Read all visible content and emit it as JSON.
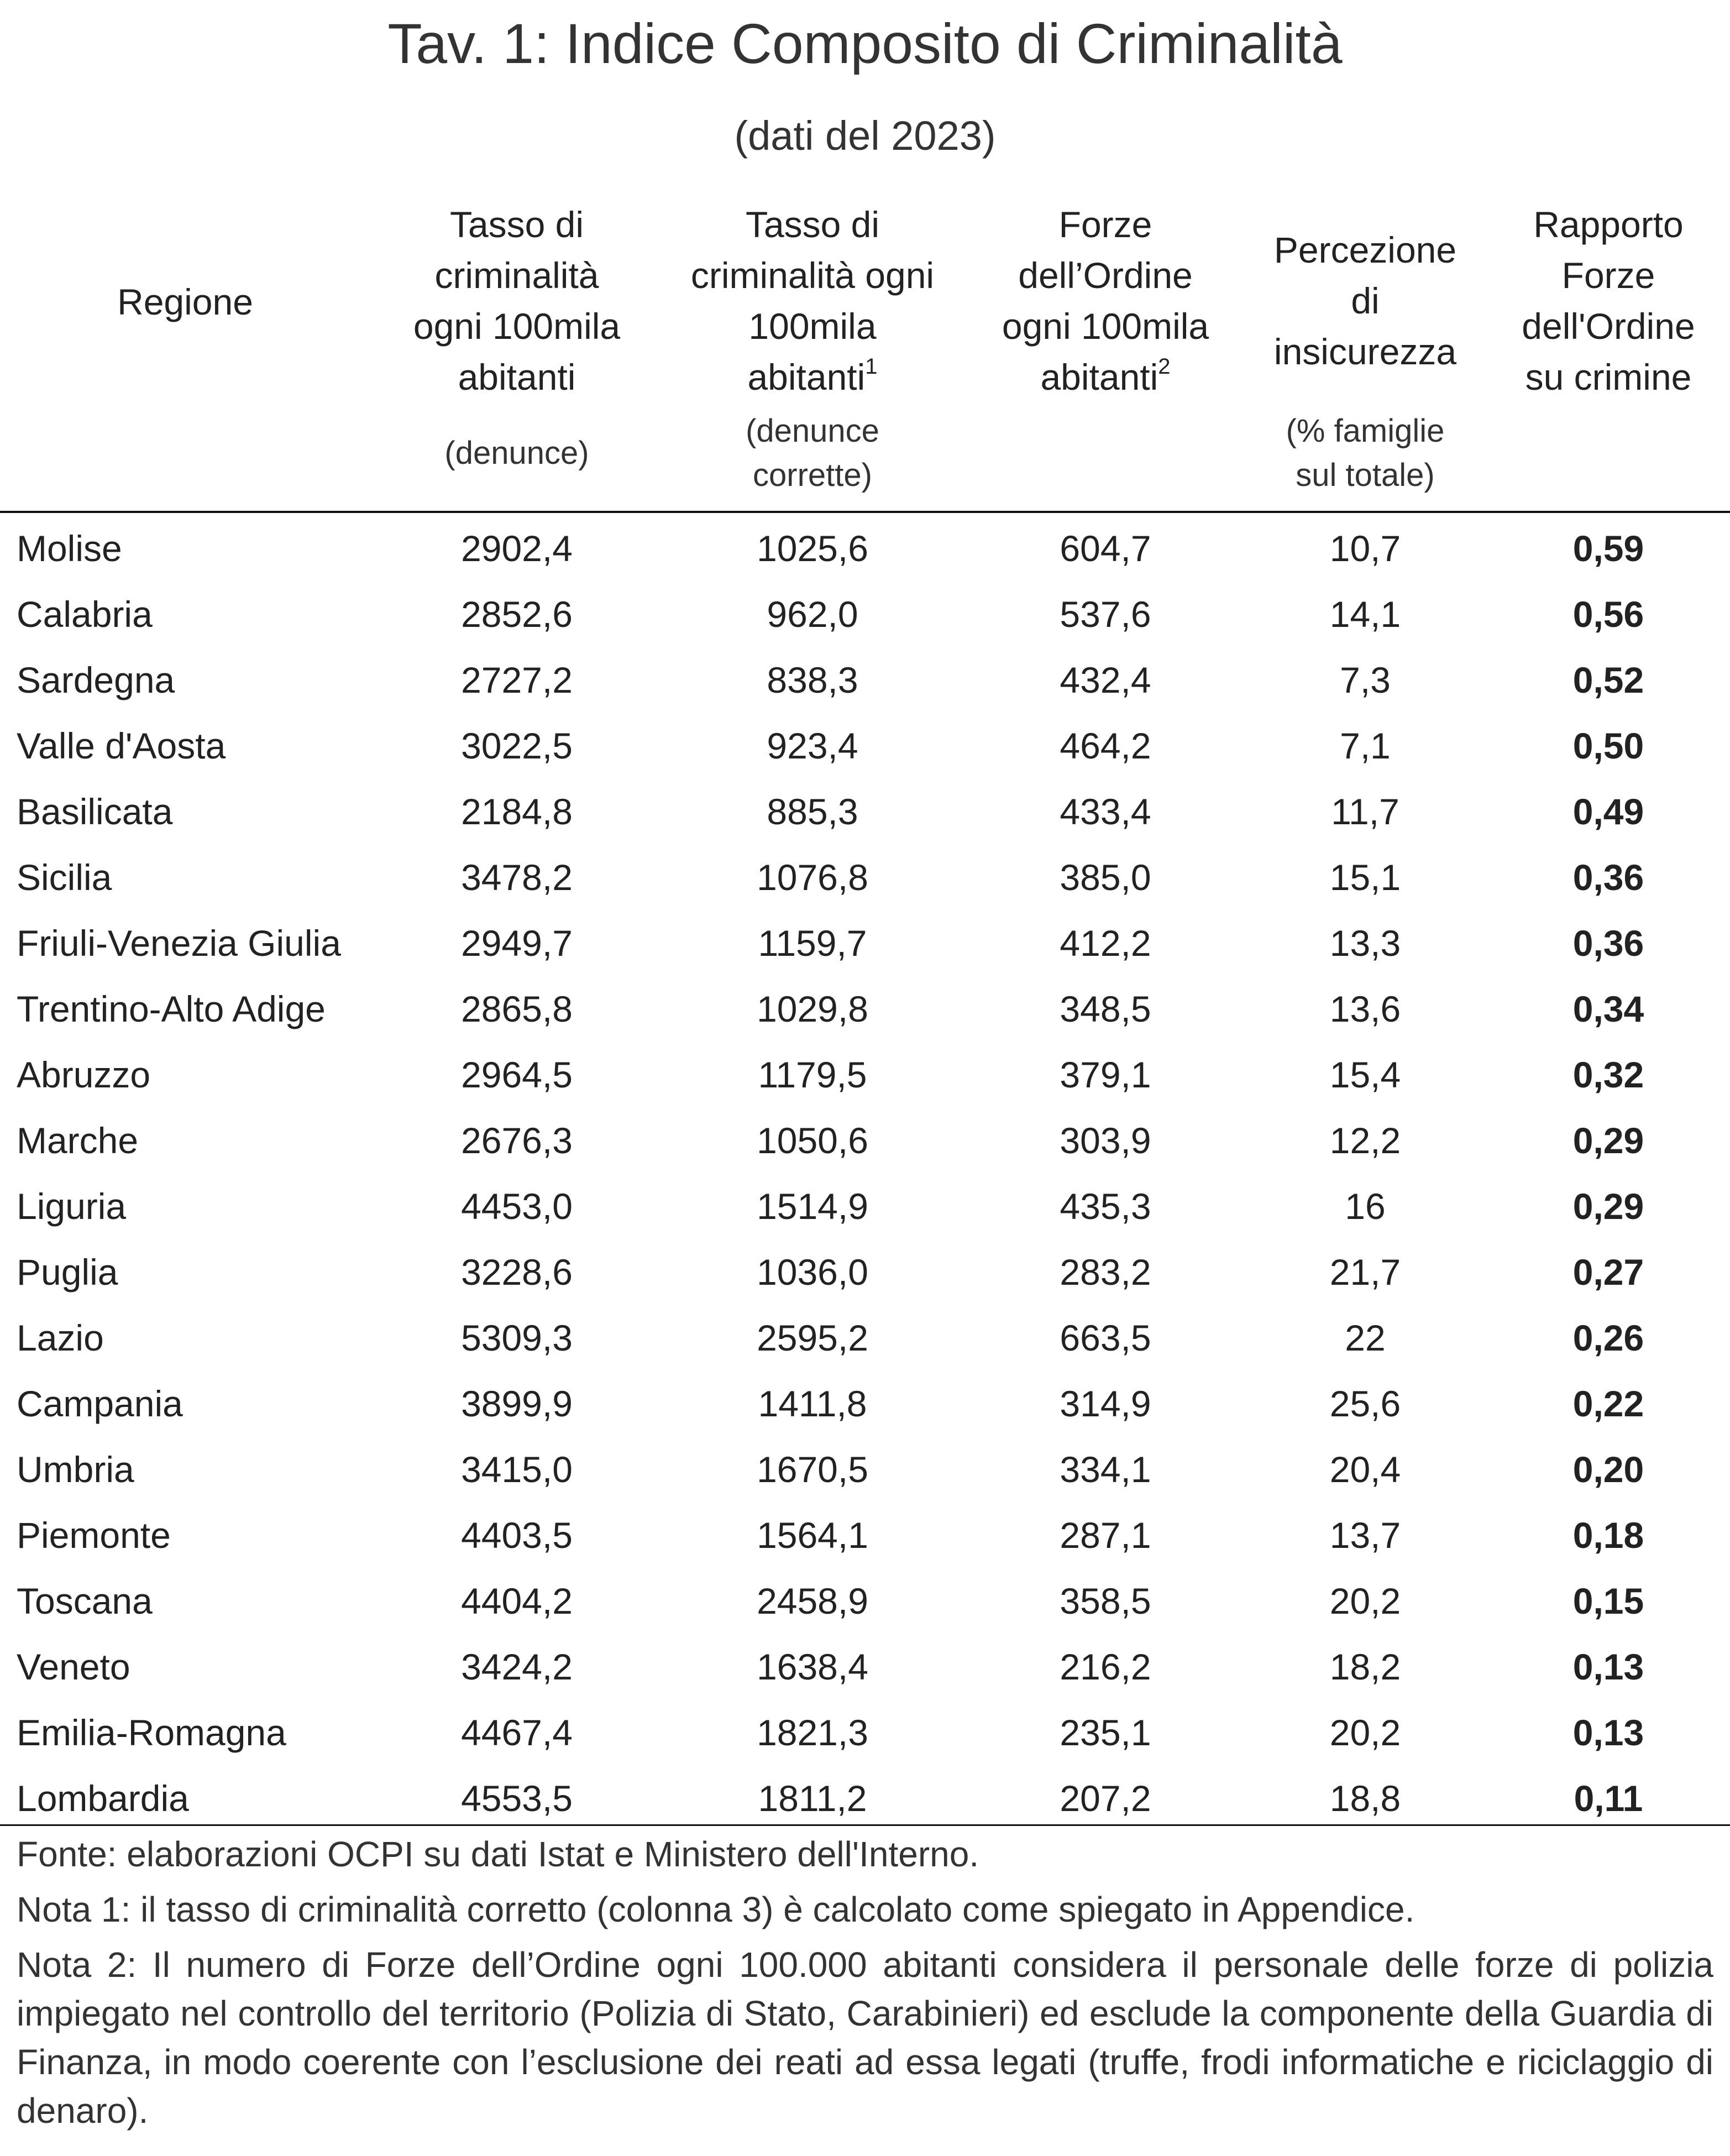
{
  "title": "Tav. 1: Indice Composito di Criminalità",
  "subtitle": "(dati del 2023)",
  "columns": [
    {
      "label": "Regione",
      "lines": [
        "Regione"
      ],
      "sub": []
    },
    {
      "label": "Tasso di criminalità ogni 100mila abitanti",
      "lines": [
        "Tasso di",
        "criminalità",
        "ogni 100mila",
        "abitanti"
      ],
      "sub": [
        "(denunce)"
      ]
    },
    {
      "label": "Tasso di criminalità ogni 100mila abitanti",
      "lines": [
        "Tasso di",
        "criminalità ogni",
        "100mila",
        "abitanti"
      ],
      "sup": "1",
      "sub": [
        "(denunce",
        "corrette)"
      ]
    },
    {
      "label": "Forze dell’Ordine ogni 100mila abitanti",
      "lines": [
        "Forze",
        "dell’Ordine",
        "ogni 100mila",
        "abitanti"
      ],
      "sup": "2",
      "sub": []
    },
    {
      "label": "Percezione di insicurezza",
      "lines": [
        "Percezione",
        "di",
        "insicurezza"
      ],
      "sub": [
        "(% famiglie",
        "sul totale)"
      ]
    },
    {
      "label": "Rapporto Forze dell'Ordine su crimine",
      "lines": [
        "Rapporto",
        "Forze",
        "dell'Ordine",
        "su crimine"
      ],
      "sub": []
    }
  ],
  "rows": [
    [
      "Molise",
      "2902,4",
      "1025,6",
      "604,7",
      "10,7",
      "0,59"
    ],
    [
      "Calabria",
      "2852,6",
      "962,0",
      "537,6",
      "14,1",
      "0,56"
    ],
    [
      "Sardegna",
      "2727,2",
      "838,3",
      "432,4",
      "7,3",
      "0,52"
    ],
    [
      "Valle d'Aosta",
      "3022,5",
      "923,4",
      "464,2",
      "7,1",
      "0,50"
    ],
    [
      "Basilicata",
      "2184,8",
      "885,3",
      "433,4",
      "11,7",
      "0,49"
    ],
    [
      "Sicilia",
      "3478,2",
      "1076,8",
      "385,0",
      "15,1",
      "0,36"
    ],
    [
      "Friuli-Venezia Giulia",
      "2949,7",
      "1159,7",
      "412,2",
      "13,3",
      "0,36"
    ],
    [
      "Trentino-Alto Adige",
      "2865,8",
      "1029,8",
      "348,5",
      "13,6",
      "0,34"
    ],
    [
      "Abruzzo",
      "2964,5",
      "1179,5",
      "379,1",
      "15,4",
      "0,32"
    ],
    [
      "Marche",
      "2676,3",
      "1050,6",
      "303,9",
      "12,2",
      "0,29"
    ],
    [
      "Liguria",
      "4453,0",
      "1514,9",
      "435,3",
      "16",
      "0,29"
    ],
    [
      "Puglia",
      "3228,6",
      "1036,0",
      "283,2",
      "21,7",
      "0,27"
    ],
    [
      "Lazio",
      "5309,3",
      "2595,2",
      "663,5",
      "22",
      "0,26"
    ],
    [
      "Campania",
      "3899,9",
      "1411,8",
      "314,9",
      "25,6",
      "0,22"
    ],
    [
      "Umbria",
      "3415,0",
      "1670,5",
      "334,1",
      "20,4",
      "0,20"
    ],
    [
      "Piemonte",
      "4403,5",
      "1564,1",
      "287,1",
      "13,7",
      "0,18"
    ],
    [
      "Toscana",
      "4404,2",
      "2458,9",
      "358,5",
      "20,2",
      "0,15"
    ],
    [
      "Veneto",
      "3424,2",
      "1638,4",
      "216,2",
      "18,2",
      "0,13"
    ],
    [
      "Emilia-Romagna",
      "4467,4",
      "1821,3",
      "235,1",
      "20,2",
      "0,13"
    ],
    [
      "Lombardia",
      "4553,5",
      "1811,2",
      "207,2",
      "18,8",
      "0,11"
    ]
  ],
  "notes": [
    "Fonte: elaborazioni OCPI su dati Istat e Ministero dell'Interno.",
    "Nota 1: il tasso di criminalità corretto (colonna 3) è calcolato come spiegato in Appendice.",
    "Nota 2: Il numero di Forze dell’Ordine ogni 100.000 abitanti considera il personale delle forze di polizia impiegato nel controllo del territorio (Polizia di Stato, Carabinieri) ed esclude la componente della Guardia di Finanza, in modo coerente con l’esclusione dei reati ad essa legati (truffe, frodi informatiche e riciclaggio di denaro)."
  ]
}
